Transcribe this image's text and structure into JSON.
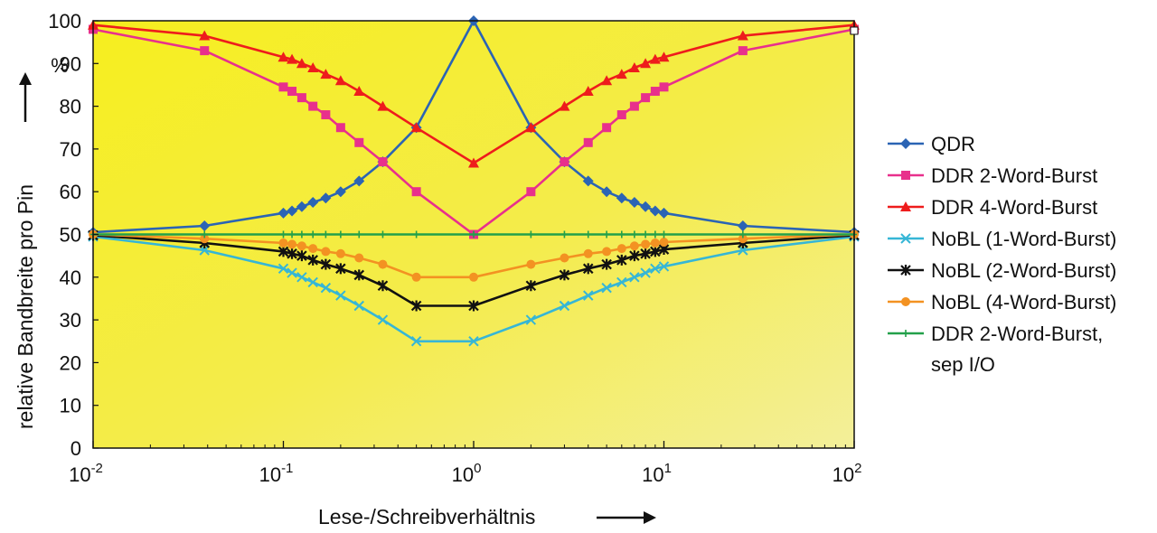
{
  "chart_data": {
    "type": "line",
    "xscale": "log",
    "xlim": [
      0.01,
      100
    ],
    "ylim": [
      0,
      100
    ],
    "ylabel": "relative Bandbreite pro Pin",
    "xlabel": "Lese-/Schreibverhältnis",
    "y_unit": "%",
    "y_ticks": [
      "0",
      "10",
      "20",
      "30",
      "40",
      "50",
      "60",
      "70",
      "80",
      "90",
      "100"
    ],
    "x_ticks": [
      {
        "base": "10",
        "exp": "-2"
      },
      {
        "base": "10",
        "exp": "-1"
      },
      {
        "base": "10",
        "exp": "0"
      },
      {
        "base": "10",
        "exp": "1"
      },
      {
        "base": "10",
        "exp": "2"
      }
    ],
    "x": [
      0.01,
      0.0385,
      0.1,
      0.111,
      0.125,
      0.143,
      0.167,
      0.2,
      0.25,
      0.333,
      0.5,
      1,
      2,
      3,
      4,
      5,
      6,
      7,
      8,
      9,
      10,
      26,
      100
    ],
    "series": [
      {
        "name": "QDR",
        "color": "#2b64b4",
        "marker": "diamond",
        "values": [
          50.5,
          52,
          55,
          55.5,
          56.5,
          57.5,
          58.5,
          60,
          62.5,
          67,
          75,
          100,
          75,
          67,
          62.5,
          60,
          58.5,
          57.5,
          56.5,
          55.5,
          55,
          52,
          50.5
        ]
      },
      {
        "name": "DDR 2-Word-Burst",
        "color": "#e8308c",
        "marker": "square",
        "values": [
          98,
          93,
          84.5,
          83.5,
          82,
          80,
          78,
          75,
          71.5,
          67,
          60,
          50,
          60,
          67,
          71.5,
          75,
          78,
          80,
          82,
          83.5,
          84.5,
          93,
          98
        ]
      },
      {
        "name": "DDR 4-Word-Burst",
        "color": "#ee1c1c",
        "marker": "triangle",
        "values": [
          99,
          96.5,
          91.5,
          91,
          90,
          89,
          87.5,
          86,
          83.5,
          80,
          75,
          66.7,
          75,
          80,
          83.5,
          86,
          87.5,
          89,
          90,
          91,
          91.5,
          96.5,
          99
        ]
      },
      {
        "name": "NoBL (1-Word-Burst)",
        "color": "#36b6d6",
        "marker": "x",
        "values": [
          49.5,
          46.3,
          42,
          41,
          40,
          38.8,
          37.5,
          35.7,
          33.3,
          30,
          25,
          25,
          30,
          33.3,
          35.7,
          37.5,
          38.8,
          40,
          41,
          42,
          42.5,
          46.3,
          49.5
        ]
      },
      {
        "name": "NoBL (2-Word-Burst)",
        "color": "#111111",
        "marker": "star",
        "values": [
          49.8,
          48,
          46,
          45.5,
          45,
          44,
          43,
          42,
          40.5,
          38,
          33.3,
          33.3,
          38,
          40.5,
          42,
          43,
          44,
          45,
          45.5,
          46,
          46.5,
          48,
          49.8
        ]
      },
      {
        "name": "NoBL (4-Word-Burst)",
        "color": "#f39222",
        "marker": "circle",
        "values": [
          50,
          49,
          48,
          47.7,
          47.3,
          46.7,
          46,
          45.5,
          44.5,
          43,
          40,
          40,
          43,
          44.5,
          45.5,
          46,
          46.7,
          47.3,
          47.7,
          48,
          48.2,
          49,
          50
        ]
      },
      {
        "name": "DDR 2-Word-Burst, sep I/O",
        "name_lines": [
          "DDR 2-Word-Burst,",
          "sep I/O"
        ],
        "color": "#23a04a",
        "marker": "plus",
        "values": [
          50,
          50,
          50,
          50,
          50,
          50,
          50,
          50,
          50,
          50,
          50,
          50,
          50,
          50,
          50,
          50,
          50,
          50,
          50,
          50,
          50,
          50,
          50
        ]
      }
    ],
    "plot_background": "#f7ee1c",
    "legend_position": "right",
    "grid": false
  }
}
